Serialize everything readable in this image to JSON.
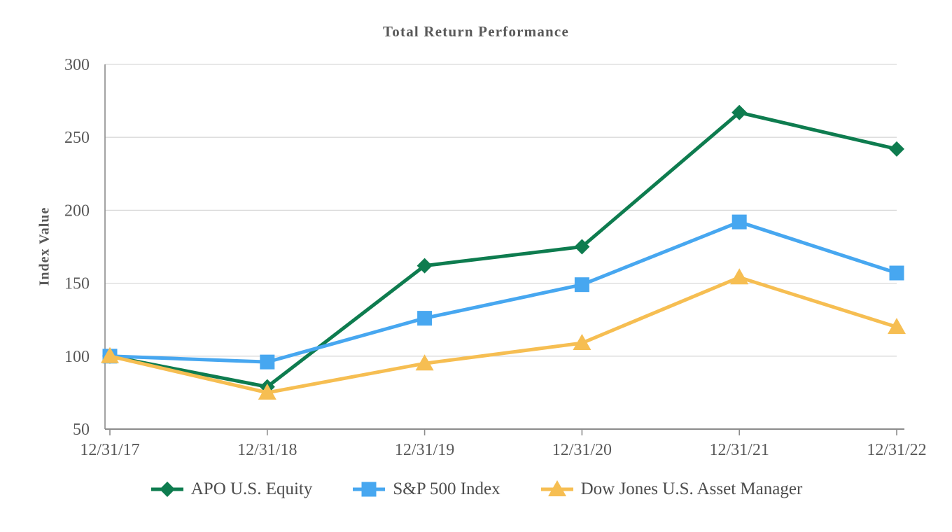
{
  "chart_data": {
    "type": "line",
    "title": "Total Return Performance",
    "ylabel": "Index Value",
    "x_labels": [
      "12/31/17",
      "12/31/18",
      "12/31/19",
      "12/31/20",
      "12/31/21",
      "12/31/22"
    ],
    "ylim": [
      50,
      300
    ],
    "yticks": [
      50,
      100,
      150,
      200,
      250,
      300
    ],
    "grid": "horizontal-only",
    "legend_position": "bottom",
    "series": [
      {
        "name": "APO U.S. Equity",
        "marker": "diamond",
        "color": "#0E7C4F",
        "values": [
          100,
          79,
          162,
          175,
          267,
          242
        ]
      },
      {
        "name": "S&P 500 Index",
        "marker": "square",
        "color": "#47A7F0",
        "values": [
          100,
          96,
          126,
          149,
          192,
          157
        ]
      },
      {
        "name": "Dow Jones U.S. Asset Manager",
        "marker": "triangle",
        "color": "#F6BE52",
        "values": [
          100,
          75,
          95,
          109,
          154,
          120
        ]
      }
    ],
    "colors": {
      "grid": "#D9D9D9",
      "axis": "#8C8C8C",
      "tick_text": "#595959",
      "legend_text": "#4D4D4D",
      "title_text": "#595959"
    }
  }
}
